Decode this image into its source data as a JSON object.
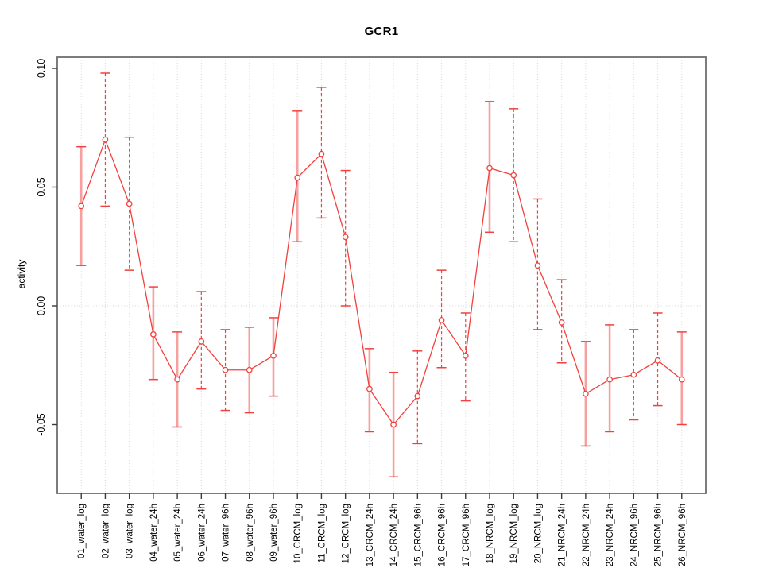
{
  "chart_data": {
    "type": "scatter",
    "title": "GCR1",
    "xlabel": "",
    "ylabel": "activity",
    "legend": "none",
    "grid": "vertical dotted gridline at every category; horizontal dotted gridline at y=0 only",
    "ylim": [
      -0.079,
      0.105
    ],
    "yticks": [
      0.1,
      0.05,
      0.0,
      -0.05
    ],
    "ytick_labels": [
      "0.10",
      "0.05",
      "0.00",
      "-0.05"
    ],
    "categories": [
      "01_water_log",
      "02_water_log",
      "03_water_log",
      "04_water_24h",
      "05_water_24h",
      "06_water_24h",
      "07_water_96h",
      "08_water_96h",
      "09_water_96h",
      "10_CRCM_log",
      "11_CRCM_log",
      "12_CRCM_log",
      "13_CRCM_24h",
      "14_CRCM_24h",
      "15_CRCM_96h",
      "16_CRCM_96h",
      "17_CRCM_96h",
      "18_NRCM_log",
      "19_NRCM_log",
      "20_NRCM_log",
      "21_NRCM_24h",
      "22_NRCM_24h",
      "23_NRCM_24h",
      "24_NRCM_96h",
      "25_NRCM_96h",
      "26_NRCM_96h"
    ],
    "series": [
      {
        "name": "activity",
        "marker": "open-circle",
        "values": [
          0.042,
          0.07,
          0.043,
          -0.012,
          -0.031,
          -0.015,
          -0.027,
          -0.027,
          -0.021,
          0.054,
          0.064,
          0.029,
          -0.035,
          -0.05,
          -0.038,
          -0.006,
          -0.021,
          0.058,
          0.055,
          0.017,
          -0.007,
          -0.037,
          -0.031,
          -0.029,
          -0.023,
          -0.031
        ],
        "err_low": [
          0.017,
          0.042,
          0.015,
          -0.031,
          -0.051,
          -0.035,
          -0.044,
          -0.045,
          -0.038,
          0.027,
          0.037,
          0.0,
          -0.053,
          -0.072,
          -0.058,
          -0.026,
          -0.04,
          0.031,
          0.027,
          -0.01,
          -0.024,
          -0.059,
          -0.053,
          -0.048,
          -0.042,
          -0.05
        ],
        "err_high": [
          0.067,
          0.098,
          0.071,
          0.008,
          -0.011,
          0.006,
          -0.01,
          -0.009,
          -0.005,
          0.082,
          0.092,
          0.057,
          -0.018,
          -0.028,
          -0.019,
          0.015,
          -0.003,
          0.086,
          0.083,
          0.045,
          0.011,
          -0.015,
          -0.008,
          -0.01,
          -0.003,
          -0.011
        ],
        "bar_styles": [
          "solid",
          "dashed",
          "dashed",
          "solid",
          "solid",
          "dashed",
          "dashed",
          "solid",
          "solid",
          "solid",
          "dashed",
          "dashed",
          "solid",
          "solid",
          "dashed",
          "dashed",
          "dashed",
          "solid",
          "dashed",
          "dashed",
          "dashed",
          "solid",
          "solid",
          "dashed",
          "dashed",
          "solid"
        ]
      }
    ],
    "colors": {
      "point": "#f0413e",
      "line": "#f0413e",
      "error_bar_solid": "#f7a0a0",
      "error_bar_dashed": "#f0413e",
      "error_bar_cap": "#f0413e",
      "grid": "#d6d6d6",
      "box": "#6e6e6e",
      "tick": "#3a3a3a",
      "text": "#000000",
      "background": "#ffffff"
    }
  }
}
